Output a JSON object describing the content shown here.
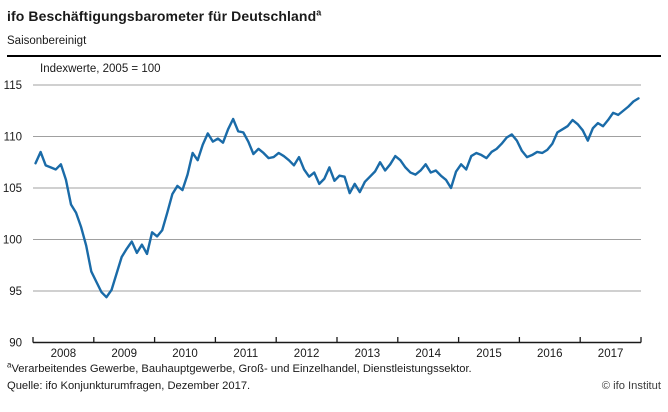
{
  "header": {
    "title": "ifo Beschäftigungsbarometer für Deutschland",
    "title_sup": "a",
    "subtitle": "Saisonbereinigt"
  },
  "chart_data": {
    "type": "line",
    "title": "ifo Beschäftigungsbarometer für Deutschland (saisonbereinigt)",
    "unit_label": "Indexwerte, 2005 = 100",
    "xlabel": "",
    "ylabel": "",
    "ylim": [
      90,
      115
    ],
    "y_ticks": [
      115,
      110,
      105,
      100,
      95,
      90
    ],
    "x_tick_labels": [
      "2008",
      "2009",
      "2010",
      "2011",
      "2012",
      "2013",
      "2014",
      "2015",
      "2016",
      "2017"
    ],
    "frequency": "monthly",
    "x_start": "2008-01",
    "x_end": "2017-12",
    "grid": "horizontal",
    "legend": "none",
    "series": [
      {
        "name": "ifo Beschäftigungsbarometer",
        "color": "#1a6ba8",
        "values": [
          107.4,
          108.5,
          107.2,
          107.0,
          106.8,
          107.3,
          105.8,
          103.4,
          102.6,
          101.2,
          99.4,
          96.9,
          95.9,
          94.9,
          94.4,
          95.1,
          96.7,
          98.3,
          99.1,
          99.8,
          98.7,
          99.5,
          98.6,
          100.7,
          100.3,
          100.9,
          102.6,
          104.4,
          105.2,
          104.8,
          106.3,
          108.4,
          107.7,
          109.2,
          110.3,
          109.5,
          109.8,
          109.4,
          110.7,
          111.7,
          110.5,
          110.4,
          109.5,
          108.3,
          108.8,
          108.4,
          107.9,
          108.0,
          108.4,
          108.1,
          107.7,
          107.2,
          108.0,
          106.8,
          106.1,
          106.5,
          105.4,
          105.9,
          107.0,
          105.7,
          106.2,
          106.1,
          104.5,
          105.4,
          104.6,
          105.6,
          106.1,
          106.6,
          107.5,
          106.7,
          107.3,
          108.1,
          107.7,
          107.0,
          106.5,
          106.3,
          106.7,
          107.3,
          106.5,
          106.7,
          106.2,
          105.8,
          105.0,
          106.6,
          107.3,
          106.8,
          108.1,
          108.4,
          108.2,
          107.9,
          108.5,
          108.8,
          109.3,
          109.9,
          110.2,
          109.6,
          108.6,
          108.0,
          108.2,
          108.5,
          108.4,
          108.7,
          109.3,
          110.4,
          110.7,
          111.0,
          111.6,
          111.2,
          110.6,
          109.6,
          110.8,
          111.3,
          111.0,
          111.6,
          112.3,
          112.1,
          112.5,
          112.9,
          113.4,
          113.7
        ]
      }
    ]
  },
  "footnotes": {
    "note_sup": "a",
    "note_text": "Verarbeitendes Gewerbe, Bauhauptgewerbe, Groß- und Einzelhandel, Dienstleistungssektor.",
    "source": "Quelle: ifo Konjunkturumfragen, Dezember 2017.",
    "copyright": "© ifo Institut"
  },
  "colors": {
    "line": "#1a6ba8",
    "grid": "#a0a0a0",
    "axis": "#1a1a1a",
    "text": "#1a1a1a"
  }
}
